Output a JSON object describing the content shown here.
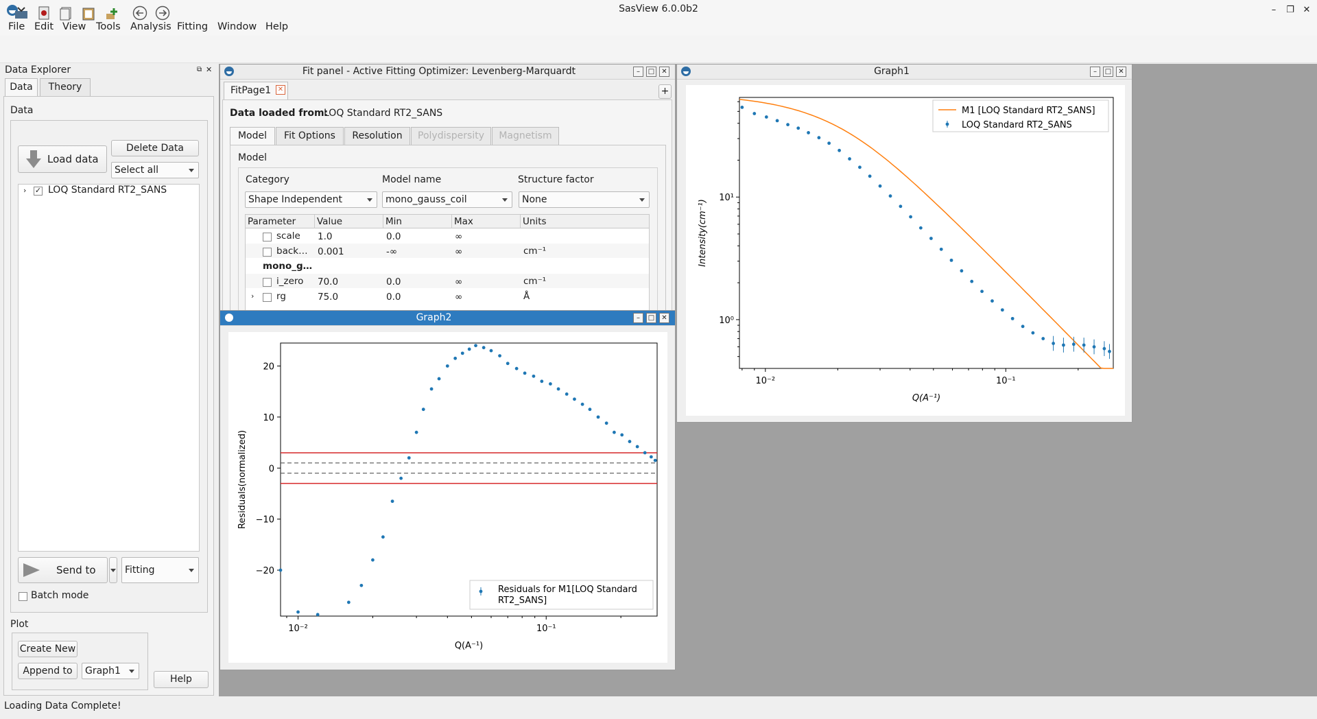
{
  "app": {
    "title": "SasView 6.0.0b2"
  },
  "menu": [
    "File",
    "Edit",
    "View",
    "Tools",
    "Analysis",
    "Fitting",
    "Window",
    "Help"
  ],
  "toolbar_icons": [
    "open-file-icon",
    "save-project-icon",
    "report-icon",
    "paste-icon",
    "add-data-icon",
    "back-icon",
    "forward-icon"
  ],
  "explorer": {
    "title": "Data Explorer",
    "tabs": [
      "Data",
      "Theory"
    ],
    "section_data": "Data",
    "load_button": "Load data",
    "delete_button": "Delete Data",
    "select_value": "Select all",
    "tree_item": "LOQ Standard RT2_SANS",
    "send_button": "Send to",
    "send_target": "Fitting",
    "batch_label": "Batch mode",
    "section_plot": "Plot",
    "create_button": "Create New",
    "append_button": "Append to",
    "append_target": "Graph1",
    "help_button": "Help"
  },
  "fitpanel": {
    "title": "Fit panel - Active Fitting Optimizer: Levenberg-Marquardt",
    "page_tab": "FitPage1",
    "loaded_label": "Data loaded from:",
    "loaded_value": "LOQ Standard RT2_SANS",
    "tabs": [
      "Model",
      "Fit Options",
      "Resolution",
      "Polydispersity",
      "Magnetism"
    ],
    "group_label": "Model",
    "category_label": "Category",
    "category_value": "Shape Independent",
    "modelname_label": "Model name",
    "modelname_value": "mono_gauss_coil",
    "structure_label": "Structure factor",
    "structure_value": "None",
    "columns": [
      "Parameter",
      "Value",
      "Min",
      "Max",
      "Units"
    ],
    "rows": [
      {
        "param": "scale",
        "value": "1.0",
        "min": "0.0",
        "max": "∞",
        "unit": ""
      },
      {
        "param": "back…",
        "value": "0.001",
        "min": "-∞",
        "max": "∞",
        "unit": "cm⁻¹"
      },
      {
        "param": "mono_g…",
        "value": "",
        "min": "",
        "max": "",
        "unit": ""
      },
      {
        "param": "i_zero",
        "value": "70.0",
        "min": "0.0",
        "max": "∞",
        "unit": "cm⁻¹"
      },
      {
        "param": "rg",
        "value": "75.0",
        "min": "0.0",
        "max": "∞",
        "unit": "Å"
      }
    ]
  },
  "graph1": {
    "title": "Graph1"
  },
  "graph2": {
    "title": "Graph2"
  },
  "status": "Loading Data Complete!",
  "colors": {
    "data": "#1f77b4",
    "model": "#ff7f0e",
    "limit": "#d62728",
    "active_title": "#2e7bbf"
  },
  "chart_data": [
    {
      "type": "scatter",
      "name": "Graph1",
      "xscale": "log",
      "yscale": "log",
      "xlim": [
        0.0078,
        0.28
      ],
      "ylim": [
        0.4,
        65
      ],
      "xlabel": "Q(A⁻¹)",
      "ylabel": "Intensity(cm⁻¹)",
      "xticks": [
        "10⁻²",
        "10⁻¹"
      ],
      "yticks": [
        "10⁰",
        "10¹"
      ],
      "legend_position": "top-right",
      "series": [
        {
          "name": "M1 [LOQ Standard RT2_SANS]",
          "kind": "line",
          "rg": 75.0,
          "i_zero": 70.0,
          "background": 0.001
        },
        {
          "name": "LOQ Standard RT2_SANS",
          "kind": "errorbar",
          "x": [
            0.008,
            0.009,
            0.0101,
            0.0112,
            0.0124,
            0.0137,
            0.0151,
            0.0167,
            0.0184,
            0.0203,
            0.0224,
            0.0247,
            0.0272,
            0.03,
            0.0331,
            0.0365,
            0.0402,
            0.0443,
            0.0489,
            0.0539,
            0.0594,
            0.0655,
            0.0722,
            0.0796,
            0.0878,
            0.0968,
            0.1067,
            0.1177,
            0.1297,
            0.143,
            0.1577,
            0.1738,
            0.1917,
            0.2113,
            0.233,
            0.2569,
            0.27
          ],
          "y": [
            54,
            48,
            45,
            42,
            39,
            36.5,
            33.5,
            30.5,
            27.5,
            24,
            20.5,
            17.5,
            14.8,
            12.3,
            10.2,
            8.4,
            6.9,
            5.6,
            4.6,
            3.75,
            3.05,
            2.5,
            2.05,
            1.7,
            1.42,
            1.2,
            1.02,
            0.88,
            0.78,
            0.7,
            0.64,
            0.62,
            0.63,
            0.62,
            0.6,
            0.58,
            0.55
          ]
        }
      ]
    },
    {
      "type": "scatter",
      "name": "Graph2",
      "xscale": "log",
      "xlim": [
        0.0085,
        0.28
      ],
      "ylim": [
        -29,
        24.5
      ],
      "xlabel": "Q(A⁻¹)",
      "ylabel": "Residuals(normalized)",
      "xticks": [
        "10⁻²",
        "10⁻¹"
      ],
      "yticks": [
        "20",
        "10",
        "0",
        "−10",
        "−20"
      ],
      "hlines": [
        {
          "y": 3,
          "color": "red"
        },
        {
          "y": -3,
          "color": "red"
        },
        {
          "y": 1,
          "style": "dashed"
        },
        {
          "y": -1,
          "style": "dashed"
        }
      ],
      "legend_position": "bottom-right",
      "series": [
        {
          "name": "Residuals for M1[LOQ Standard RT2_SANS]",
          "x": [
            0.0085,
            0.01,
            0.012,
            0.016,
            0.018,
            0.02,
            0.022,
            0.024,
            0.026,
            0.028,
            0.03,
            0.032,
            0.0345,
            0.037,
            0.04,
            0.043,
            0.046,
            0.049,
            0.052,
            0.056,
            0.06,
            0.065,
            0.07,
            0.076,
            0.082,
            0.089,
            0.096,
            0.104,
            0.112,
            0.121,
            0.13,
            0.14,
            0.15,
            0.162,
            0.175,
            0.188,
            0.202,
            0.217,
            0.233,
            0.25,
            0.265,
            0.275
          ],
          "y": [
            -20,
            -28.2,
            -28.7,
            -26.3,
            -23,
            -18,
            -13.5,
            -6.5,
            -2,
            2,
            7,
            11.5,
            15.5,
            17.5,
            20,
            21.5,
            22.5,
            23.3,
            24,
            23.6,
            23,
            22,
            20.5,
            19.5,
            18.6,
            18,
            17,
            16.5,
            15.5,
            14.5,
            13.5,
            12.5,
            11.5,
            10,
            8.8,
            7,
            6.5,
            5.2,
            4.2,
            3,
            2.2,
            1.5
          ]
        }
      ]
    }
  ]
}
